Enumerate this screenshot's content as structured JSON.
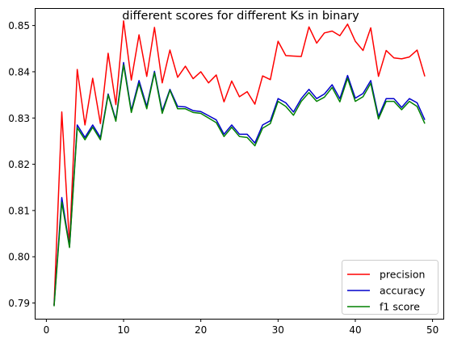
{
  "chart_data": {
    "type": "line",
    "title": "different scores for different Ks in binary",
    "xlabel": "",
    "ylabel": "",
    "xlim": [
      -1.4,
      51.4
    ],
    "ylim": [
      0.7866,
      0.8536
    ],
    "xticks": [
      0,
      10,
      20,
      30,
      40,
      50
    ],
    "yticks": [
      0.79,
      0.8,
      0.81,
      0.82,
      0.83,
      0.84,
      0.85
    ],
    "xtick_labels": [
      "0",
      "10",
      "20",
      "30",
      "40",
      "50"
    ],
    "ytick_labels": [
      "0.79",
      "0.80",
      "0.81",
      "0.82",
      "0.83",
      "0.84",
      "0.85"
    ],
    "grid": false,
    "legend_position": "lower-right",
    "x": [
      1,
      2,
      3,
      4,
      5,
      6,
      7,
      8,
      9,
      10,
      11,
      12,
      13,
      14,
      15,
      16,
      17,
      18,
      19,
      20,
      21,
      22,
      23,
      24,
      25,
      26,
      27,
      28,
      29,
      30,
      31,
      32,
      33,
      34,
      35,
      36,
      37,
      38,
      39,
      40,
      41,
      42,
      43,
      44,
      45,
      46,
      47,
      48,
      49
    ],
    "series": [
      {
        "name": "precision",
        "color": "#ff0000",
        "values": [
          0.7895,
          0.8313,
          0.8025,
          0.8405,
          0.8285,
          0.8386,
          0.8288,
          0.844,
          0.8329,
          0.851,
          0.8382,
          0.848,
          0.839,
          0.8496,
          0.8376,
          0.8447,
          0.8388,
          0.8412,
          0.8385,
          0.84,
          0.8376,
          0.8393,
          0.8335,
          0.838,
          0.8346,
          0.8357,
          0.833,
          0.8391,
          0.8383,
          0.8466,
          0.8435,
          0.8434,
          0.8433,
          0.8497,
          0.8462,
          0.8484,
          0.8488,
          0.8478,
          0.8503,
          0.8466,
          0.8446,
          0.8495,
          0.839,
          0.8446,
          0.843,
          0.8428,
          0.8432,
          0.8447,
          0.839
        ]
      },
      {
        "name": "accuracy",
        "color": "#0000cc",
        "values": [
          0.7895,
          0.8128,
          0.8022,
          0.8285,
          0.8258,
          0.8285,
          0.8258,
          0.8352,
          0.8296,
          0.842,
          0.8316,
          0.8381,
          0.8325,
          0.8401,
          0.8315,
          0.8362,
          0.8325,
          0.8324,
          0.8316,
          0.8314,
          0.8305,
          0.8296,
          0.8265,
          0.8285,
          0.8265,
          0.8265,
          0.8246,
          0.8285,
          0.8294,
          0.8342,
          0.8333,
          0.8313,
          0.8342,
          0.8362,
          0.8342,
          0.8352,
          0.8372,
          0.8342,
          0.8392,
          0.8343,
          0.8353,
          0.8381,
          0.8303,
          0.8342,
          0.8342,
          0.8323,
          0.8342,
          0.8333,
          0.8296
        ]
      },
      {
        "name": "f1 score",
        "color": "#008000",
        "values": [
          0.7893,
          0.8118,
          0.802,
          0.8279,
          0.8253,
          0.828,
          0.8253,
          0.835,
          0.8293,
          0.8415,
          0.8312,
          0.8375,
          0.832,
          0.8398,
          0.831,
          0.836,
          0.832,
          0.832,
          0.8312,
          0.831,
          0.83,
          0.829,
          0.826,
          0.828,
          0.826,
          0.8258,
          0.824,
          0.8278,
          0.8288,
          0.8336,
          0.8325,
          0.8306,
          0.8336,
          0.8355,
          0.8336,
          0.8345,
          0.8366,
          0.8335,
          0.8386,
          0.8336,
          0.8346,
          0.8375,
          0.8298,
          0.8336,
          0.8336,
          0.8318,
          0.8336,
          0.8325,
          0.8288
        ]
      }
    ]
  }
}
